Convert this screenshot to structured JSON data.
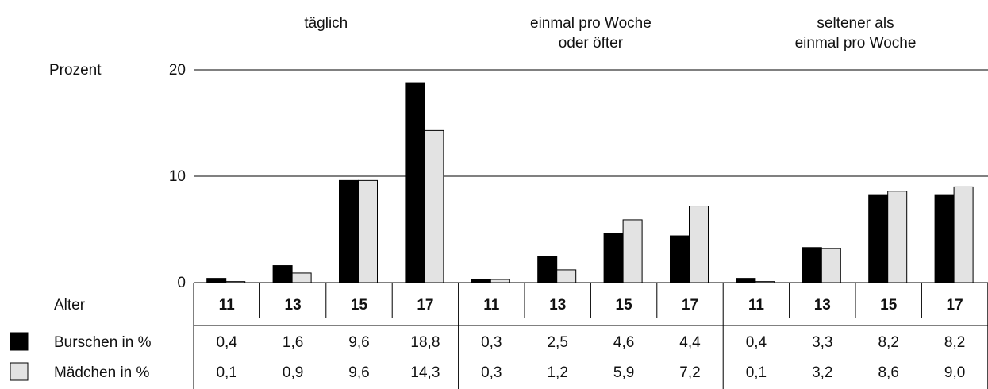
{
  "chart_data": {
    "type": "bar",
    "ylabel": "Prozent",
    "ylim": [
      0,
      20
    ],
    "yticks": [
      0,
      10,
      20
    ],
    "x_row_label": "Alter",
    "groups": [
      {
        "title_lines": [
          "täglich"
        ],
        "ages": [
          "11",
          "13",
          "15",
          "17"
        ]
      },
      {
        "title_lines": [
          "einmal pro Woche",
          "oder öfter"
        ],
        "ages": [
          "11",
          "13",
          "15",
          "17"
        ]
      },
      {
        "title_lines": [
          "seltener als",
          "einmal pro Woche"
        ],
        "ages": [
          "11",
          "13",
          "15",
          "17"
        ]
      }
    ],
    "series": [
      {
        "name": "Burschen in %",
        "color": "#000000",
        "values": [
          0.4,
          1.6,
          9.6,
          18.8,
          0.3,
          2.5,
          4.6,
          4.4,
          0.4,
          3.3,
          8.2,
          8.2
        ],
        "labels": [
          "0,4",
          "1,6",
          "9,6",
          "18,8",
          "0,3",
          "2,5",
          "4,6",
          "4,4",
          "0,4",
          "3,3",
          "8,2",
          "8,2"
        ]
      },
      {
        "name": "Mädchen in %",
        "color": "#e3e3e3",
        "values": [
          0.1,
          0.9,
          9.6,
          14.3,
          0.3,
          1.2,
          5.9,
          7.2,
          0.1,
          3.2,
          8.6,
          9.0
        ],
        "labels": [
          "0,1",
          "0,9",
          "9,6",
          "14,3",
          "0,3",
          "1,2",
          "5,9",
          "7,2",
          "0,1",
          "3,2",
          "8,6",
          "9,0"
        ]
      }
    ],
    "grid": true,
    "legend": "table-left"
  }
}
